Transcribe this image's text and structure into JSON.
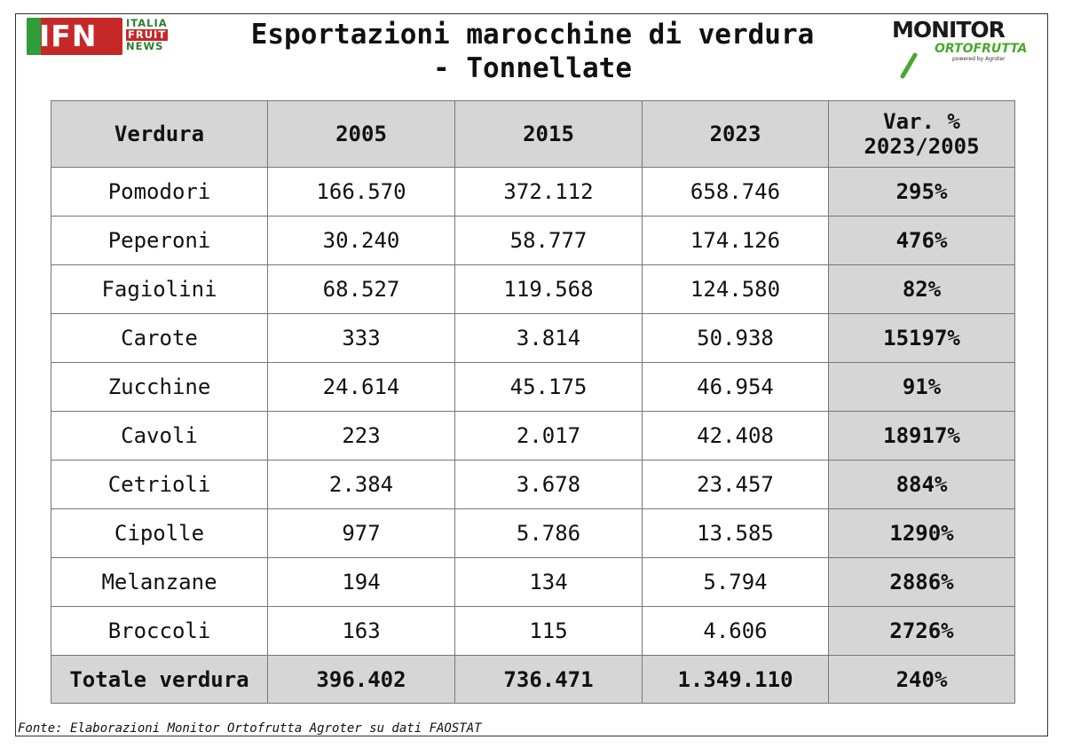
{
  "header": {
    "title_line1": "Esportazioni marocchine di verdura",
    "title_line2": "- Tonnellate"
  },
  "logos": {
    "ifn": {
      "mark": "IFN",
      "line1": "ITALIA",
      "line2": "FRUIT",
      "line3": "NEWS"
    },
    "monitor": {
      "word": "MONITOR",
      "sub": "ORTOFRUTTA",
      "powered": "powered by Agroter"
    }
  },
  "colors": {
    "header_bg": "#d6d6d6",
    "ifn_red": "#c62828",
    "ifn_green": "#2e9d3a",
    "monitor_green": "#49a82c"
  },
  "footer": {
    "source": "Fonte: Elaborazioni Monitor Ortofrutta Agroter su dati FAOSTAT"
  },
  "chart_data": {
    "type": "table",
    "title": "Esportazioni marocchine di verdura - Tonnellate",
    "columns": [
      "Verdura",
      "2005",
      "2015",
      "2023",
      "Var. % 2023/2005"
    ],
    "column_header_lines": [
      [
        "Verdura"
      ],
      [
        "2005"
      ],
      [
        "2015"
      ],
      [
        "2023"
      ],
      [
        "Var. %",
        "2023/2005"
      ]
    ],
    "rows": [
      [
        "Pomodori",
        "166.570",
        "372.112",
        "658.746",
        "295%"
      ],
      [
        "Peperoni",
        "30.240",
        "58.777",
        "174.126",
        "476%"
      ],
      [
        "Fagiolini",
        "68.527",
        "119.568",
        "124.580",
        "82%"
      ],
      [
        "Carote",
        "333",
        "3.814",
        "50.938",
        "15197%"
      ],
      [
        "Zucchine",
        "24.614",
        "45.175",
        "46.954",
        "91%"
      ],
      [
        "Cavoli",
        "223",
        "2.017",
        "42.408",
        "18917%"
      ],
      [
        "Cetrioli",
        "2.384",
        "3.678",
        "23.457",
        "884%"
      ],
      [
        "Cipolle",
        "977",
        "5.786",
        "13.585",
        "1290%"
      ],
      [
        "Melanzane",
        "194",
        "134",
        "5.794",
        "2886%"
      ],
      [
        "Broccoli",
        "163",
        "115",
        "4.606",
        "2726%"
      ]
    ],
    "total": [
      "Totale verdura",
      "396.402",
      "736.471",
      "1.349.110",
      "240%"
    ],
    "values_2005": [
      166570,
      30240,
      68527,
      333,
      24614,
      223,
      2384,
      977,
      194,
      163
    ],
    "values_2015": [
      372112,
      58777,
      119568,
      3814,
      45175,
      2017,
      3678,
      5786,
      134,
      115
    ],
    "values_2023": [
      658746,
      174126,
      124580,
      50938,
      46954,
      42408,
      23457,
      13585,
      5794,
      4606
    ],
    "var_pct": [
      295,
      476,
      82,
      15197,
      91,
      18917,
      884,
      1290,
      2886,
      2726
    ]
  }
}
